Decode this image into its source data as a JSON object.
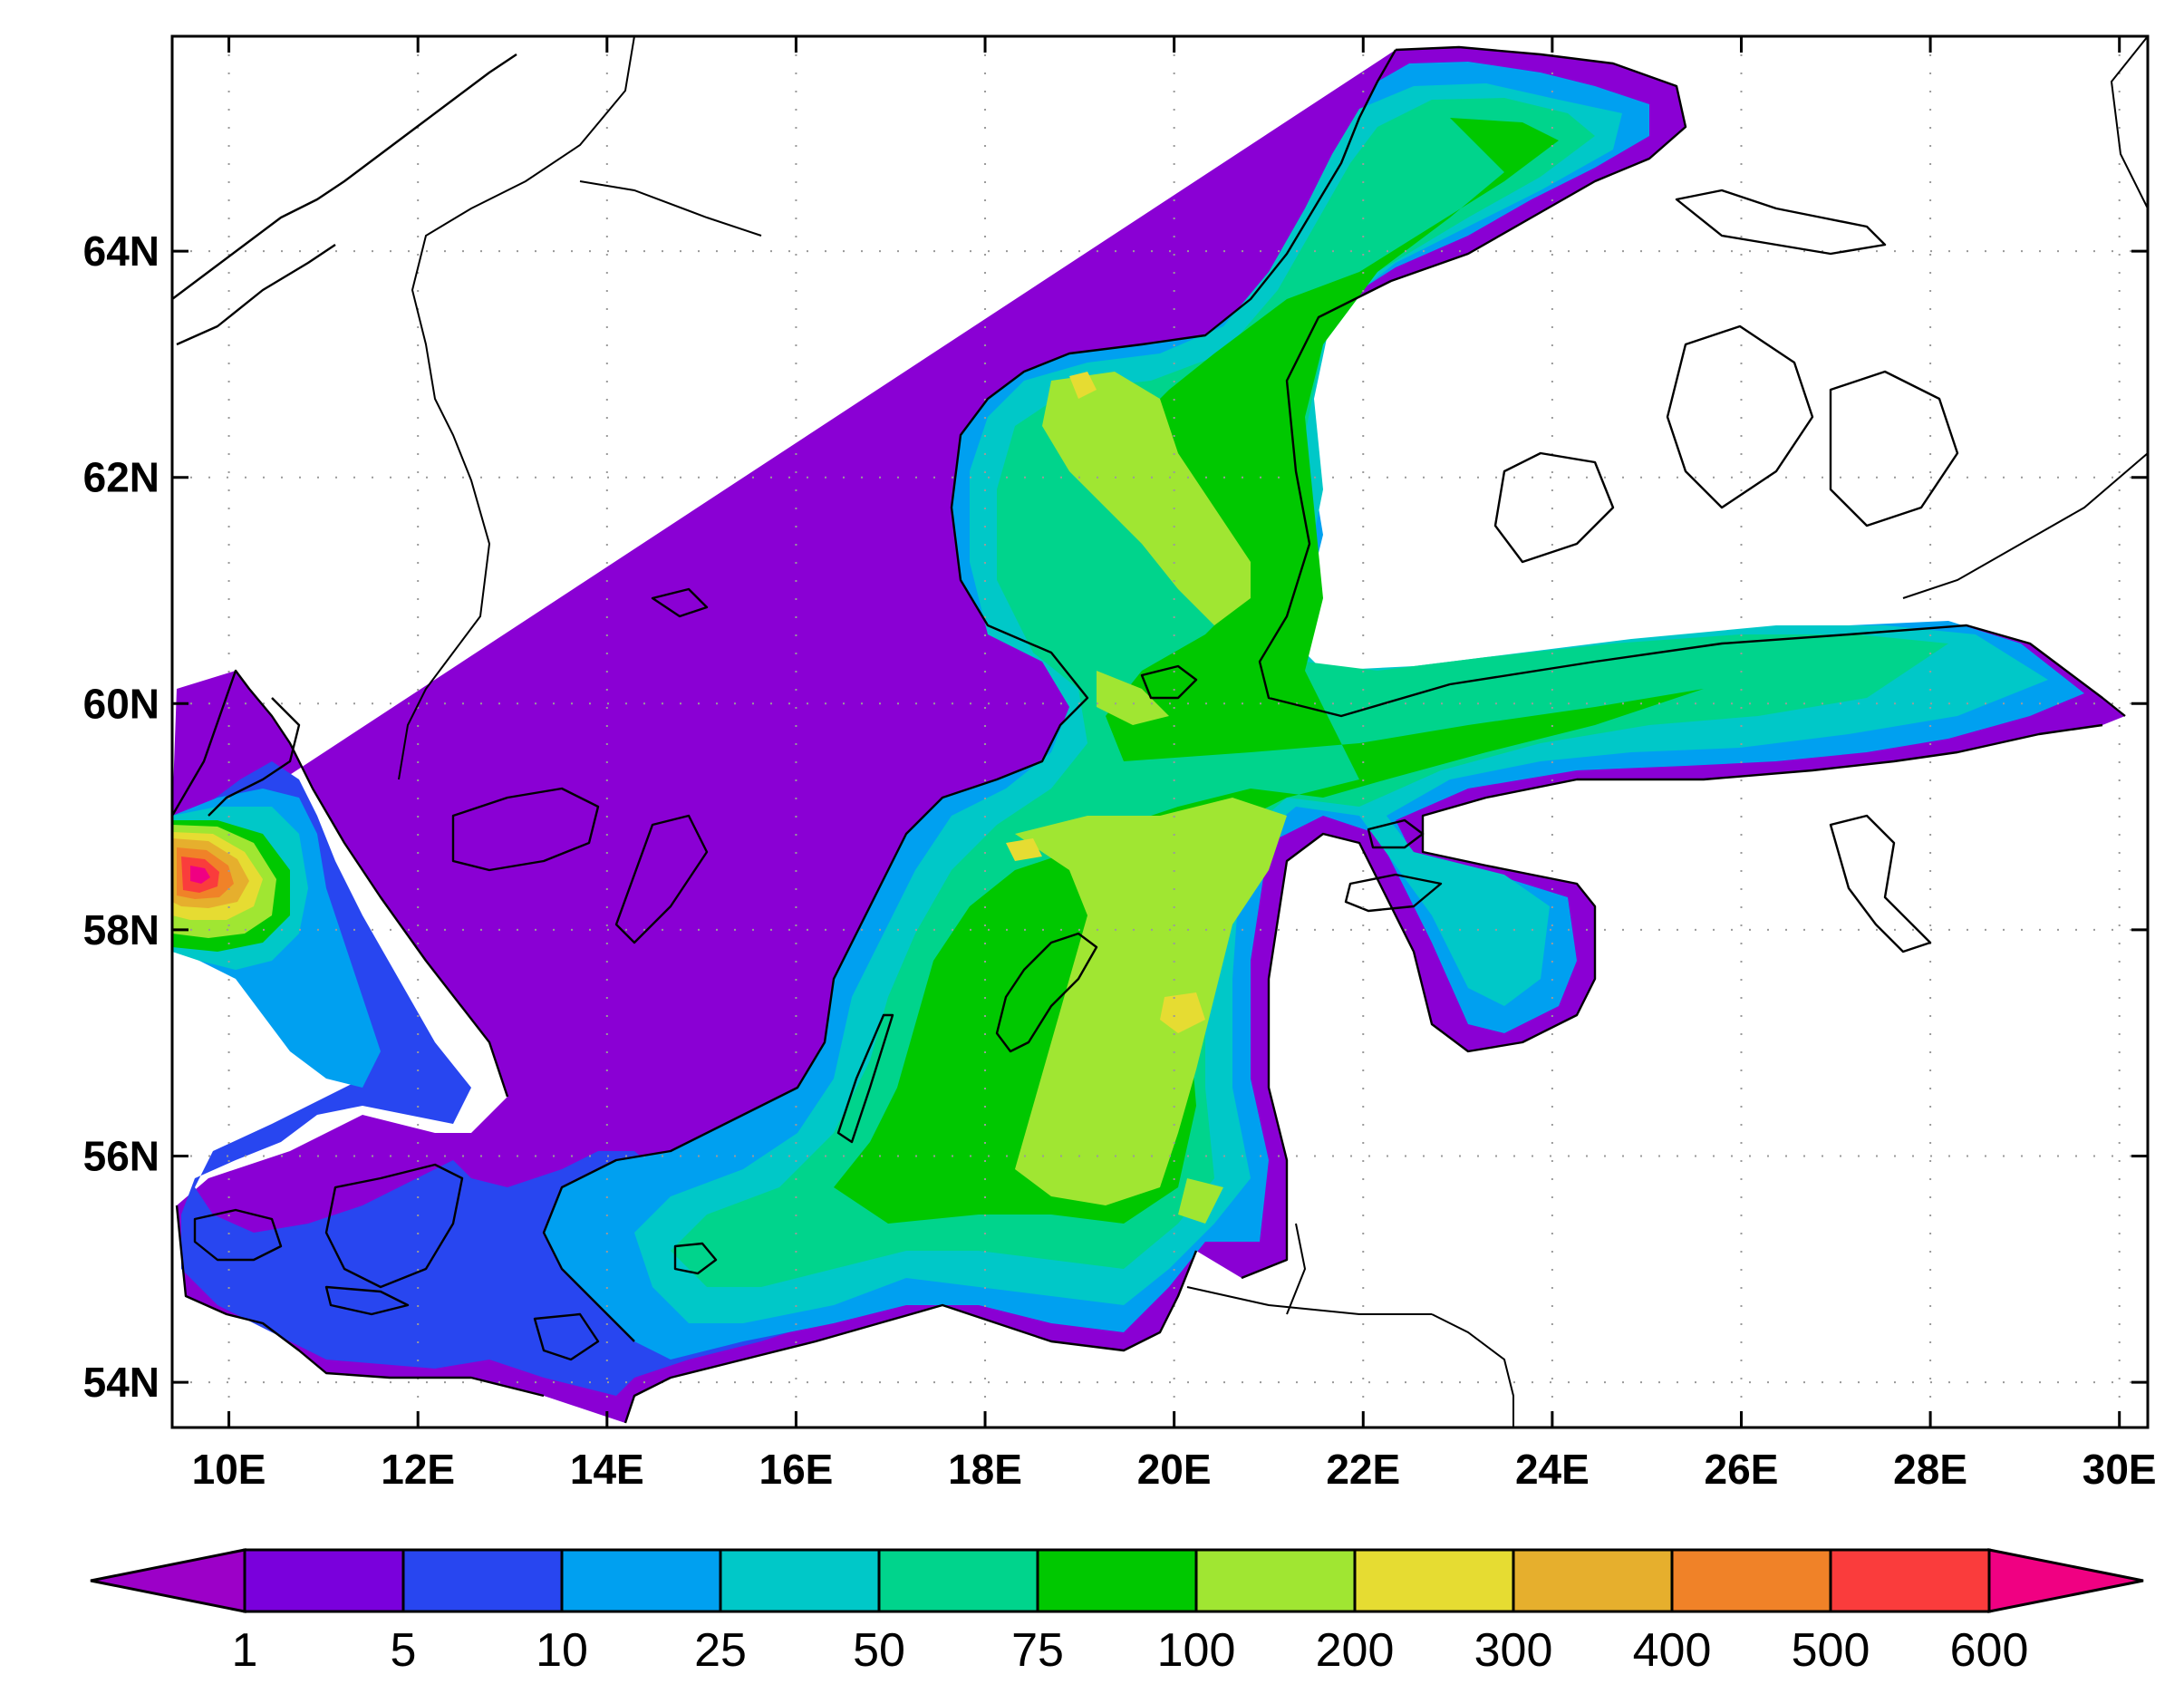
{
  "axes": {
    "lon_ticks": [
      "10E",
      "12E",
      "14E",
      "16E",
      "18E",
      "20E",
      "22E",
      "24E",
      "26E",
      "28E",
      "30E"
    ],
    "lat_ticks": [
      "64N",
      "62N",
      "60N",
      "58N",
      "56N",
      "54N"
    ],
    "lon_values": [
      10,
      12,
      14,
      16,
      18,
      20,
      22,
      24,
      26,
      28,
      30
    ],
    "lat_values": [
      64,
      62,
      60,
      58,
      56,
      54
    ],
    "lon_range": [
      9.4,
      30.3
    ],
    "lat_range": [
      53.6,
      65.9
    ],
    "grid": "dotted"
  },
  "colorbar": {
    "labels": [
      "1",
      "5",
      "10",
      "25",
      "50",
      "75",
      "100",
      "200",
      "300",
      "400",
      "500",
      "600"
    ],
    "colors": [
      "#9c00c8",
      "#7a00dc",
      "#2846f0",
      "#00a0f0",
      "#00c8c8",
      "#00d48c",
      "#00c800",
      "#a0e632",
      "#e6dc32",
      "#e6af2d",
      "#f08228",
      "#fa3c3c",
      "#f00082"
    ],
    "position": "bottom",
    "extend": "both"
  }
}
